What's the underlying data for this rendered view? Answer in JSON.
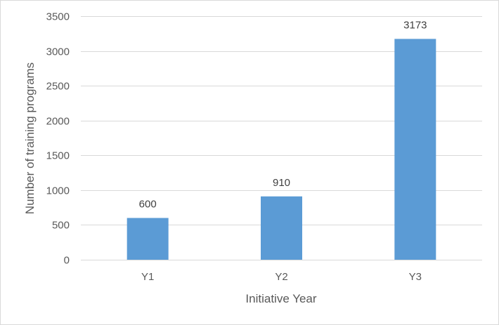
{
  "chart_data": {
    "type": "bar",
    "title": "",
    "xlabel": "Initiative Year",
    "ylabel": "Number of training programs",
    "categories": [
      "Y1",
      "Y2",
      "Y3"
    ],
    "values": [
      600,
      910,
      3173
    ],
    "data_labels": [
      "600",
      "910",
      "3173"
    ],
    "ylim": [
      0,
      3500
    ],
    "yticks": [
      0,
      500,
      1000,
      1500,
      2000,
      2500,
      3000,
      3500
    ],
    "ytick_labels": [
      "0",
      "500",
      "1000",
      "1500",
      "2000",
      "2500",
      "3000",
      "3500"
    ],
    "grid": true,
    "legend": "none",
    "bar_color": "#5b9bd5",
    "gridline_color": "#d9d9d9",
    "text_color": "#595959"
  }
}
